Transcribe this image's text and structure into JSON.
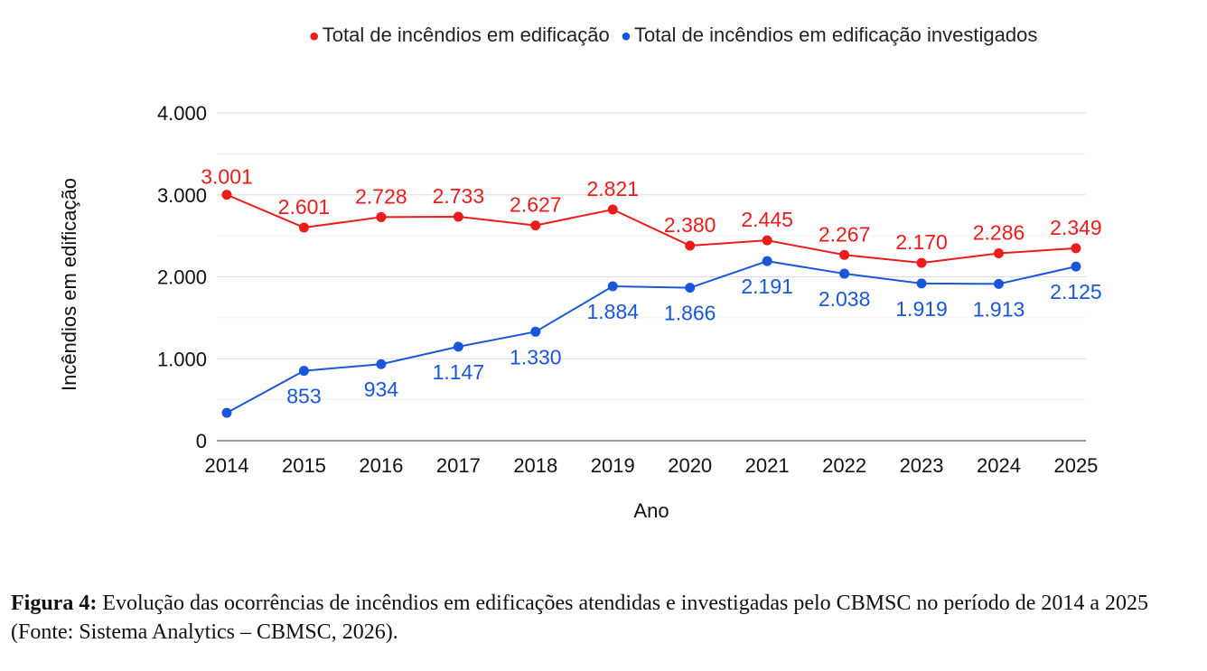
{
  "chart_data": {
    "type": "line",
    "categories": [
      "2014",
      "2015",
      "2016",
      "2017",
      "2018",
      "2019",
      "2020",
      "2021",
      "2022",
      "2023",
      "2024",
      "2025"
    ],
    "series": [
      {
        "name": "Total de incêndios em edificação",
        "color": "#ee1b1b",
        "values": [
          3001,
          2601,
          2728,
          2733,
          2627,
          2821,
          2380,
          2445,
          2267,
          2170,
          2286,
          2349
        ],
        "labels": [
          "3.001",
          "2.601",
          "2.728",
          "2.733",
          "2.627",
          "2.821",
          "2.380",
          "2.445",
          "2.267",
          "2.170",
          "2.286",
          "2.349"
        ]
      },
      {
        "name": "Total de incêndios em edificação investigados",
        "color": "#1a56db",
        "values": [
          340,
          853,
          934,
          1147,
          1330,
          1884,
          1866,
          2191,
          2038,
          1919,
          1913,
          2125
        ],
        "labels": [
          "",
          "853",
          "934",
          "1.147",
          "1.330",
          "1.884",
          "1.866",
          "2.191",
          "2.038",
          "1.919",
          "1.913",
          "2.125"
        ]
      }
    ],
    "xlabel": "Ano",
    "ylabel": "Incêndios em edificação",
    "ylim": [
      0,
      4000
    ],
    "yticks": [
      0,
      1000,
      2000,
      3000,
      4000
    ],
    "ytick_labels": [
      "0",
      "1.000",
      "2.000",
      "3.000",
      "4.000"
    ],
    "grid": true,
    "legend_position": "top"
  },
  "caption": {
    "label": "Figura 4:",
    "text": " Evolução das ocorrências de incêndios em edificações atendidas e investigadas pelo CBMSC no período de 2014 a 2025 (Fonte: Sistema Analytics – CBMSC, 2026)."
  }
}
